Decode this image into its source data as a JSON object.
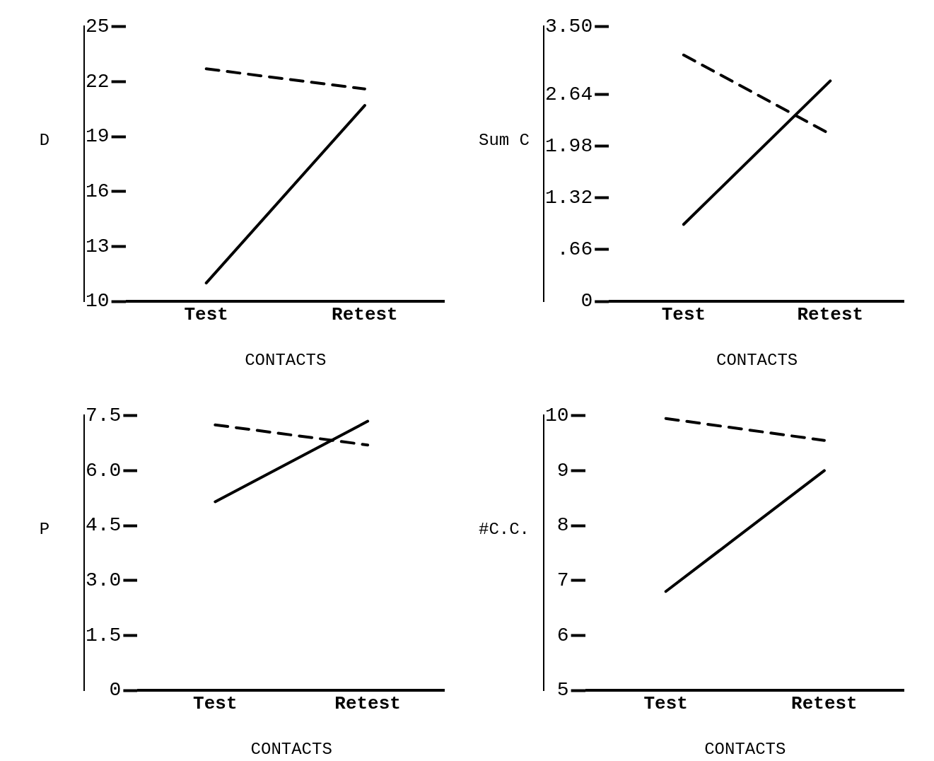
{
  "chart_data": [
    {
      "type": "line",
      "ylabel": "D",
      "xlabel": "CONTACTS",
      "categories": [
        "Test",
        "Retest"
      ],
      "ylim": [
        10,
        25
      ],
      "yticks": [
        10,
        13,
        16,
        19,
        22,
        25
      ],
      "grid": false,
      "legend": false,
      "marker": "none",
      "series": [
        {
          "color": "#000000",
          "line_style": "dashed",
          "values": [
            22.7,
            21.6
          ]
        },
        {
          "color": "#000000",
          "line_style": "solid",
          "values": [
            11.0,
            20.7
          ]
        }
      ]
    },
    {
      "type": "line",
      "ylabel": "Sum C",
      "xlabel": "CONTACTS",
      "categories": [
        "Test",
        "Retest"
      ],
      "ylim": [
        0,
        3.5
      ],
      "yticks": [
        0,
        {
          "value": 0.66,
          "label": ".66"
        },
        1.32,
        1.98,
        2.64,
        {
          "value": 3.5,
          "label": "3.50"
        }
      ],
      "grid": false,
      "legend": false,
      "marker": "none",
      "series": [
        {
          "color": "#000000",
          "line_style": "dashed",
          "values": [
            3.14,
            2.13
          ]
        },
        {
          "color": "#000000",
          "line_style": "solid",
          "values": [
            0.98,
            2.81
          ]
        }
      ]
    },
    {
      "type": "line",
      "ylabel": "P",
      "xlabel": "CONTACTS",
      "categories": [
        "Test",
        "Retest"
      ],
      "ylim": [
        0,
        7.5
      ],
      "yticks": [
        0,
        1.5,
        {
          "value": 3,
          "label": "3.0"
        },
        4.5,
        {
          "value": 6,
          "label": "6.0"
        },
        7.5
      ],
      "grid": false,
      "legend": false,
      "marker": "none",
      "series": [
        {
          "color": "#000000",
          "line_style": "dashed",
          "values": [
            7.25,
            6.7
          ]
        },
        {
          "color": "#000000",
          "line_style": "solid",
          "values": [
            5.15,
            7.35
          ]
        }
      ]
    },
    {
      "type": "line",
      "ylabel": "#C.C.",
      "xlabel": "CONTACTS",
      "categories": [
        "Test",
        "Retest"
      ],
      "ylim": [
        5,
        10
      ],
      "yticks": [
        5,
        6,
        7,
        8,
        9,
        10
      ],
      "grid": false,
      "legend": false,
      "marker": "none",
      "series": [
        {
          "color": "#000000",
          "line_style": "dashed",
          "values": [
            9.95,
            9.55
          ]
        },
        {
          "color": "#000000",
          "line_style": "solid",
          "values": [
            6.8,
            9.0
          ]
        }
      ]
    }
  ]
}
